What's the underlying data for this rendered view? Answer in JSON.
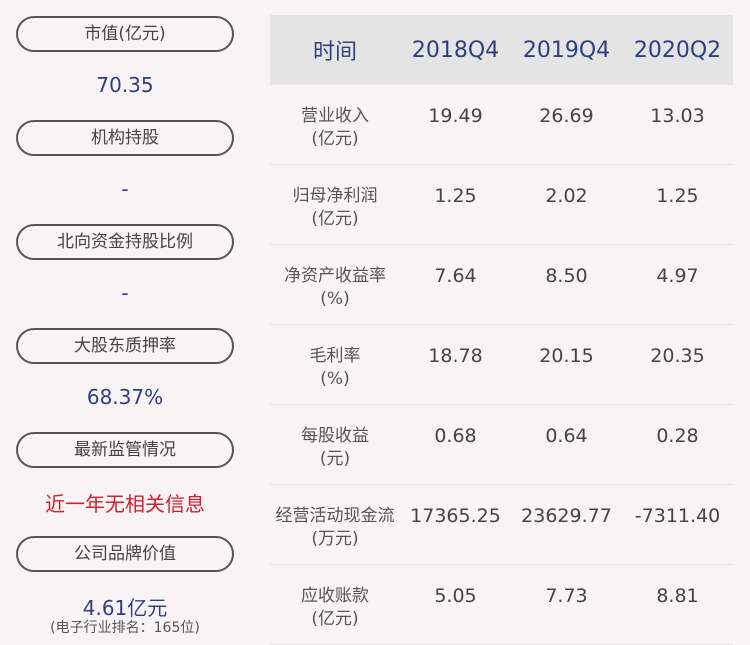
{
  "left": [
    {
      "label": "市值(亿元)",
      "value": "70.35"
    },
    {
      "label": "机构持股",
      "value": "-"
    },
    {
      "label": "北向资金持股比例",
      "value": "-"
    },
    {
      "label": "大股东质押率",
      "value": "68.37%"
    },
    {
      "label": "最新监管情况",
      "value": "近一年无相关信息"
    },
    {
      "label": "公司品牌价值",
      "value": "4.61亿元",
      "note": "(电子行业排名：165位)"
    }
  ],
  "table": {
    "headers": [
      "时间",
      "2018Q4",
      "2019Q4",
      "2020Q2"
    ],
    "rows": [
      {
        "name": "营业收入",
        "unit": "(亿元)",
        "values": [
          "19.49",
          "26.69",
          "13.03"
        ]
      },
      {
        "name": "归母净利润",
        "unit": "(亿元)",
        "values": [
          "1.25",
          "2.02",
          "1.25"
        ]
      },
      {
        "name": "净资产收益率",
        "unit": "(%)",
        "values": [
          "7.64",
          "8.50",
          "4.97"
        ]
      },
      {
        "name": "毛利率",
        "unit": "(%)",
        "values": [
          "18.78",
          "20.15",
          "20.35"
        ]
      },
      {
        "name": "每股收益",
        "unit": "(元)",
        "values": [
          "0.68",
          "0.64",
          "0.28"
        ]
      },
      {
        "name": "经营活动现金流",
        "unit": "(万元)",
        "values": [
          "17365.25",
          "23629.77",
          "-7311.40"
        ]
      },
      {
        "name": "应收账款",
        "unit": "(亿元)",
        "values": [
          "5.05",
          "7.73",
          "8.81"
        ]
      }
    ]
  }
}
